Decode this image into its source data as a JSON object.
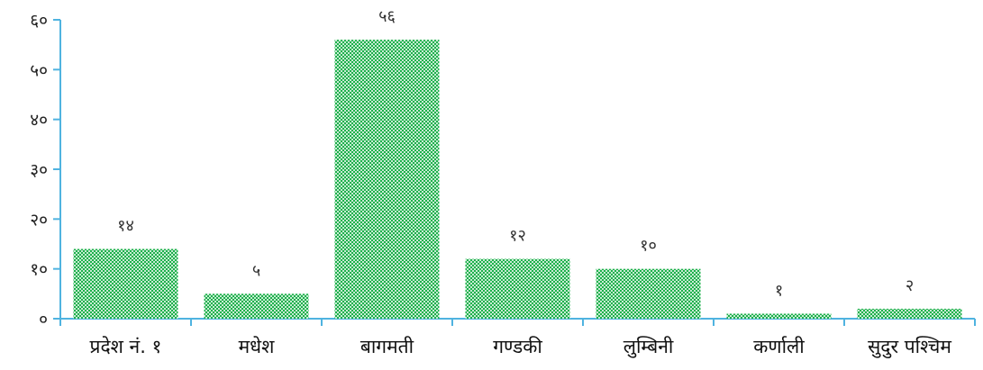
{
  "chart_data": {
    "type": "bar",
    "categories": [
      "प्रदेश नं. १",
      "मधेश",
      "बागमती",
      "गण्डकी",
      "लुम्बिनी",
      "कर्णाली",
      "सुदुर पश्चिम"
    ],
    "values": [
      14,
      5,
      56,
      12,
      10,
      1,
      2
    ],
    "data_labels": [
      "१४",
      "५",
      "५६",
      "१२",
      "१०",
      "१",
      "२"
    ],
    "y_ticks": [
      0,
      10,
      20,
      30,
      40,
      50,
      60
    ],
    "y_tick_labels": [
      "०",
      "१०",
      "२०",
      "३०",
      "४०",
      "५०",
      "६०"
    ],
    "ylim": [
      0,
      60
    ],
    "title": "",
    "xlabel": "",
    "ylabel": "",
    "grid": false,
    "legend": "none",
    "colors": {
      "bar_fill": "#1db04b",
      "bar_dot": "#ffffff",
      "axis": "#4fb3e0"
    }
  }
}
